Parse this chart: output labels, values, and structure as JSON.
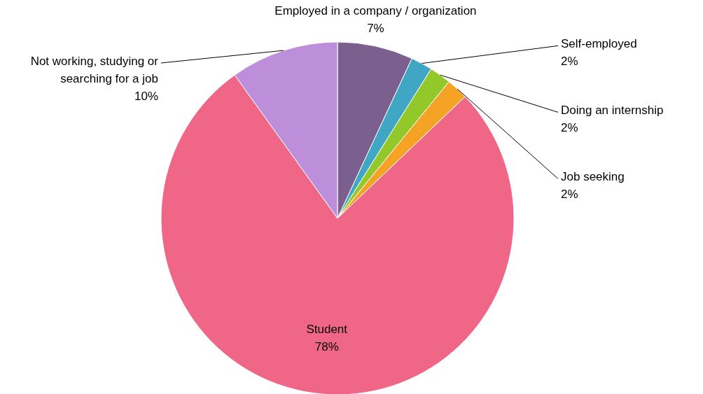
{
  "chart_data": {
    "type": "pie",
    "categories": [
      "Employed in a company / organization",
      "Self-employed",
      "Doing an internship",
      "Job seeking",
      "Student",
      "Not working, studying or searching for a job"
    ],
    "values": [
      7,
      2,
      2,
      2,
      78,
      10
    ],
    "colors": [
      "#7b5f8e",
      "#3fa6c4",
      "#93c82a",
      "#f5a324",
      "#ef6686",
      "#bd8fdb"
    ],
    "value_labels": [
      "7%",
      "2%",
      "2%",
      "2%",
      "78%",
      "10%"
    ]
  }
}
